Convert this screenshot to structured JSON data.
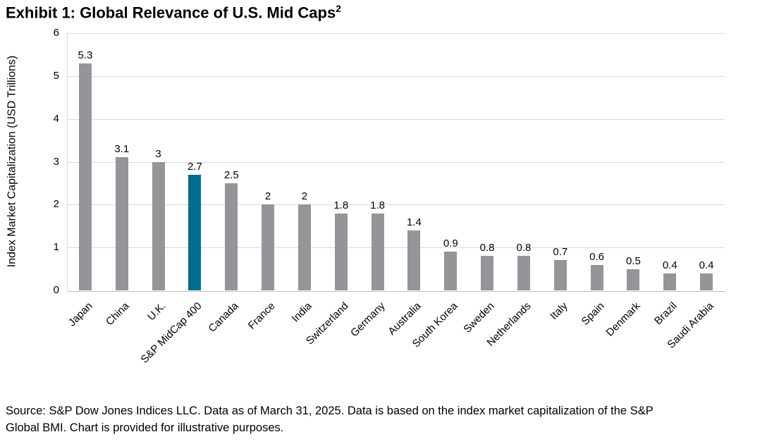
{
  "exhibit_title": {
    "text": "Exhibit 1: Global Relevance of U.S. Mid Caps",
    "superscript": "2"
  },
  "source_note": {
    "line1": "Source: S&P Dow Jones Indices LLC. Data as of March 31, 2025. Data is based on the index market capitalization of the S&P",
    "line2": "Global BMI. Chart is provided for illustrative purposes."
  },
  "chart_data": {
    "type": "bar",
    "title": "Exhibit 1: Global Relevance of U.S. Mid Caps²",
    "ylabel": "Index Market Capitalization (USD Trillions)",
    "xlabel": "",
    "ylim": [
      0,
      6
    ],
    "yticks": [
      0,
      1,
      2,
      3,
      4,
      5,
      6
    ],
    "grid": true,
    "legend": false,
    "categories": [
      "Japan",
      "China",
      "U.K.",
      "S&P MidCap 400",
      "Canada",
      "France",
      "India",
      "Switzerland",
      "Germany",
      "Australia",
      "South Korea",
      "Sweden",
      "Netherlands",
      "Italy",
      "Spain",
      "Denmark",
      "Brazil",
      "Saudi Arabia"
    ],
    "values": [
      5.3,
      3.1,
      3,
      2.7,
      2.5,
      2,
      2,
      1.8,
      1.8,
      1.4,
      0.9,
      0.8,
      0.8,
      0.7,
      0.6,
      0.5,
      0.4,
      0.4
    ],
    "data_labels": [
      "5.3",
      "3.1",
      "3",
      "2.7",
      "2.5",
      "2",
      "2",
      "1.8",
      "1.8",
      "1.4",
      "0.9",
      "0.8",
      "0.8",
      "0.7",
      "0.6",
      "0.5",
      "0.4",
      "0.4"
    ],
    "highlighted_category": "S&P MidCap 400",
    "colors": {
      "bar": "#939598",
      "highlight": "#006e8c",
      "gridline": "#d9d9d9",
      "axis_line": "#c0c0c0",
      "label_text": "#000000"
    }
  }
}
